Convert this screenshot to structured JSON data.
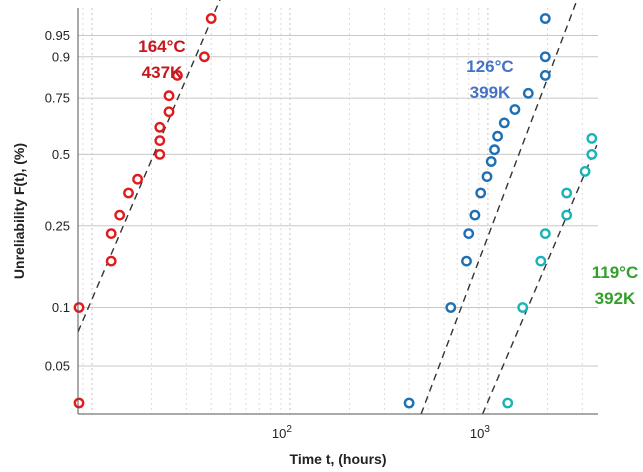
{
  "chart_data": {
    "type": "scatter",
    "title": "",
    "xlabel": "Time t, (hours)",
    "ylabel": "Unreliability F(t), (%)",
    "x_scale": "log",
    "y_scale": "weibull",
    "xlim": [
      8.5,
      3600
    ],
    "ylim": [
      0.028,
      0.985
    ],
    "grid": true,
    "x_ticks": [
      {
        "value": 100,
        "base": "10",
        "exp": "2"
      },
      {
        "value": 1000,
        "base": "10",
        "exp": "3"
      }
    ],
    "y_ticks": [
      {
        "value": 0.05,
        "label": "0.05"
      },
      {
        "value": 0.1,
        "label": "0.1"
      },
      {
        "value": 0.25,
        "label": "0.25"
      },
      {
        "value": 0.5,
        "label": "0.5"
      },
      {
        "value": 0.75,
        "label": "0.75"
      },
      {
        "value": 0.9,
        "label": "0.9"
      },
      {
        "value": 0.95,
        "label": "0.95"
      }
    ],
    "series": [
      {
        "label_lines": [
          "164°C",
          "437K"
        ],
        "color": "#e01b1b",
        "points": [
          [
            8.6,
            0.032
          ],
          [
            8.6,
            0.1
          ],
          [
            12.5,
            0.17
          ],
          [
            12.5,
            0.23
          ],
          [
            13.8,
            0.28
          ],
          [
            15.3,
            0.35
          ],
          [
            17,
            0.4
          ],
          [
            22,
            0.5
          ],
          [
            22,
            0.56
          ],
          [
            22,
            0.62
          ],
          [
            24.5,
            0.69
          ],
          [
            24.5,
            0.76
          ],
          [
            27,
            0.84
          ],
          [
            37,
            0.9
          ],
          [
            40,
            0.975
          ]
        ],
        "fit": {
          "x1": 8.5,
          "y1": 0.075,
          "x2": 52,
          "y2": 0.999
        }
      },
      {
        "label_lines": [
          "126°C",
          "399K"
        ],
        "color": "#1f6fb4",
        "points": [
          [
            400,
            0.032
          ],
          [
            650,
            0.1
          ],
          [
            780,
            0.17
          ],
          [
            800,
            0.23
          ],
          [
            860,
            0.28
          ],
          [
            920,
            0.35
          ],
          [
            990,
            0.41
          ],
          [
            1040,
            0.47
          ],
          [
            1080,
            0.52
          ],
          [
            1120,
            0.58
          ],
          [
            1210,
            0.64
          ],
          [
            1370,
            0.7
          ],
          [
            1600,
            0.77
          ],
          [
            1950,
            0.84
          ],
          [
            1950,
            0.9
          ],
          [
            1950,
            0.975
          ]
        ],
        "fit": {
          "x1": 460,
          "y1": 0.028,
          "x2": 3250,
          "y2": 0.999
        }
      },
      {
        "label_lines": [
          "119°C",
          "392K"
        ],
        "color": "#1ab3b8",
        "points": [
          [
            1260,
            0.032
          ],
          [
            1500,
            0.1
          ],
          [
            1850,
            0.17
          ],
          [
            1950,
            0.23
          ],
          [
            2500,
            0.28
          ],
          [
            2500,
            0.35
          ],
          [
            3100,
            0.43
          ],
          [
            3350,
            0.5
          ],
          [
            3350,
            0.57
          ]
        ],
        "fit": {
          "x1": 940,
          "y1": 0.028,
          "x2": 3550,
          "y2": 0.54
        }
      }
    ],
    "series_label_colors": [
      "#c8161d",
      "#4472c4",
      "#33a02c"
    ]
  }
}
